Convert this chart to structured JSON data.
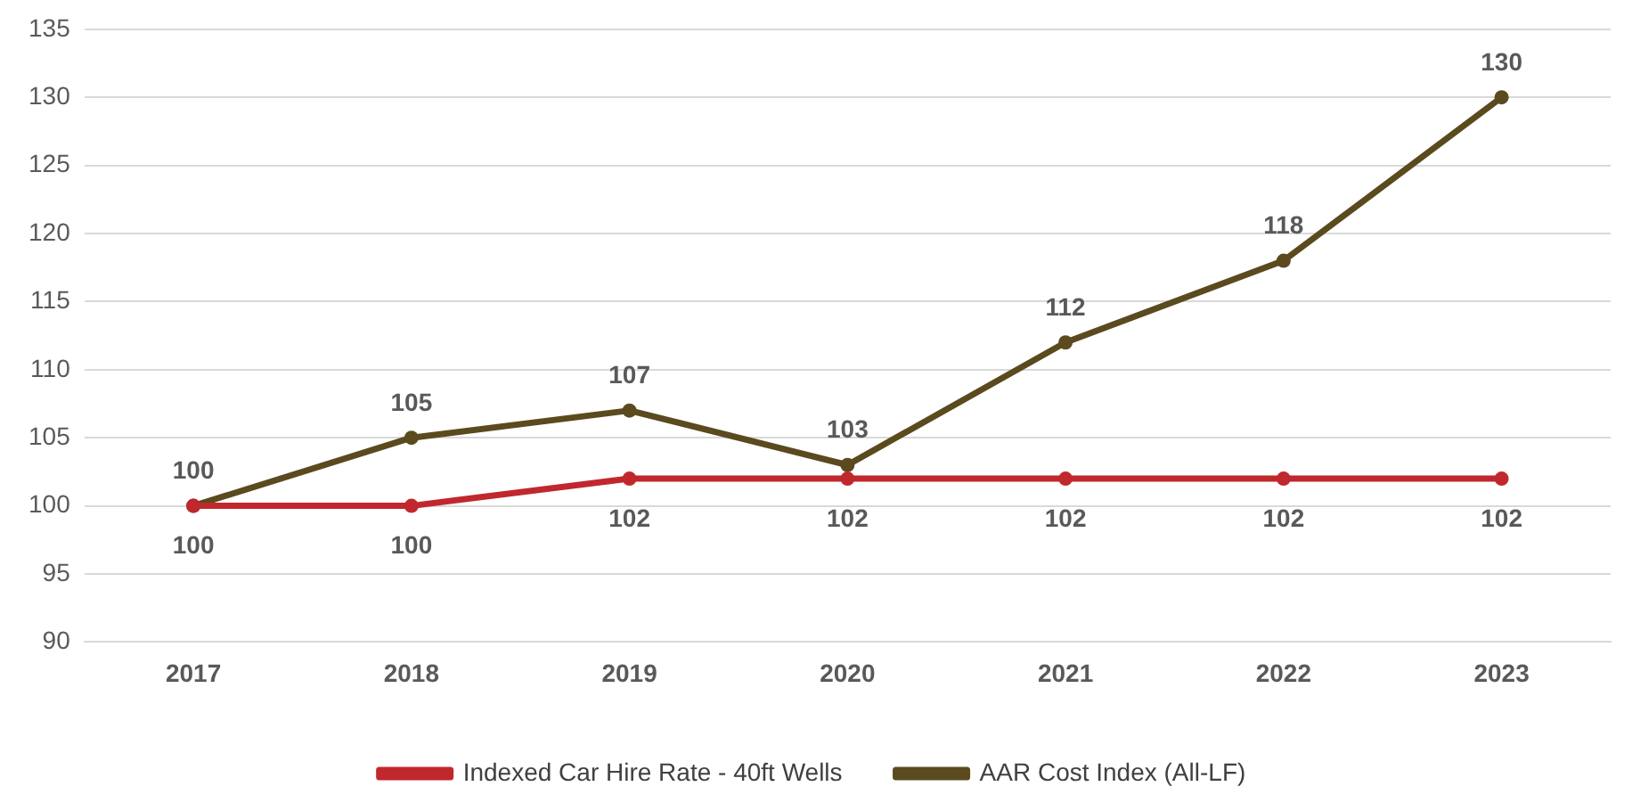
{
  "chart_data": {
    "type": "line",
    "categories": [
      "2017",
      "2018",
      "2019",
      "2020",
      "2021",
      "2022",
      "2023"
    ],
    "series": [
      {
        "name": "Indexed Car Hire Rate - 40ft Wells",
        "color": "#c0282d",
        "values": [
          100,
          100,
          102,
          102,
          102,
          102,
          102
        ]
      },
      {
        "name": "AAR Cost Index (All-LF)",
        "color": "#5a4a1e",
        "values": [
          100,
          105,
          107,
          103,
          112,
          118,
          130
        ]
      }
    ],
    "ylim": [
      90,
      135
    ],
    "yticks": [
      90,
      95,
      100,
      105,
      110,
      115,
      120,
      125,
      130,
      135
    ],
    "grid": "y",
    "legend": "bottom",
    "marker": "circle",
    "line_style": "solid",
    "data_labels": true
  }
}
